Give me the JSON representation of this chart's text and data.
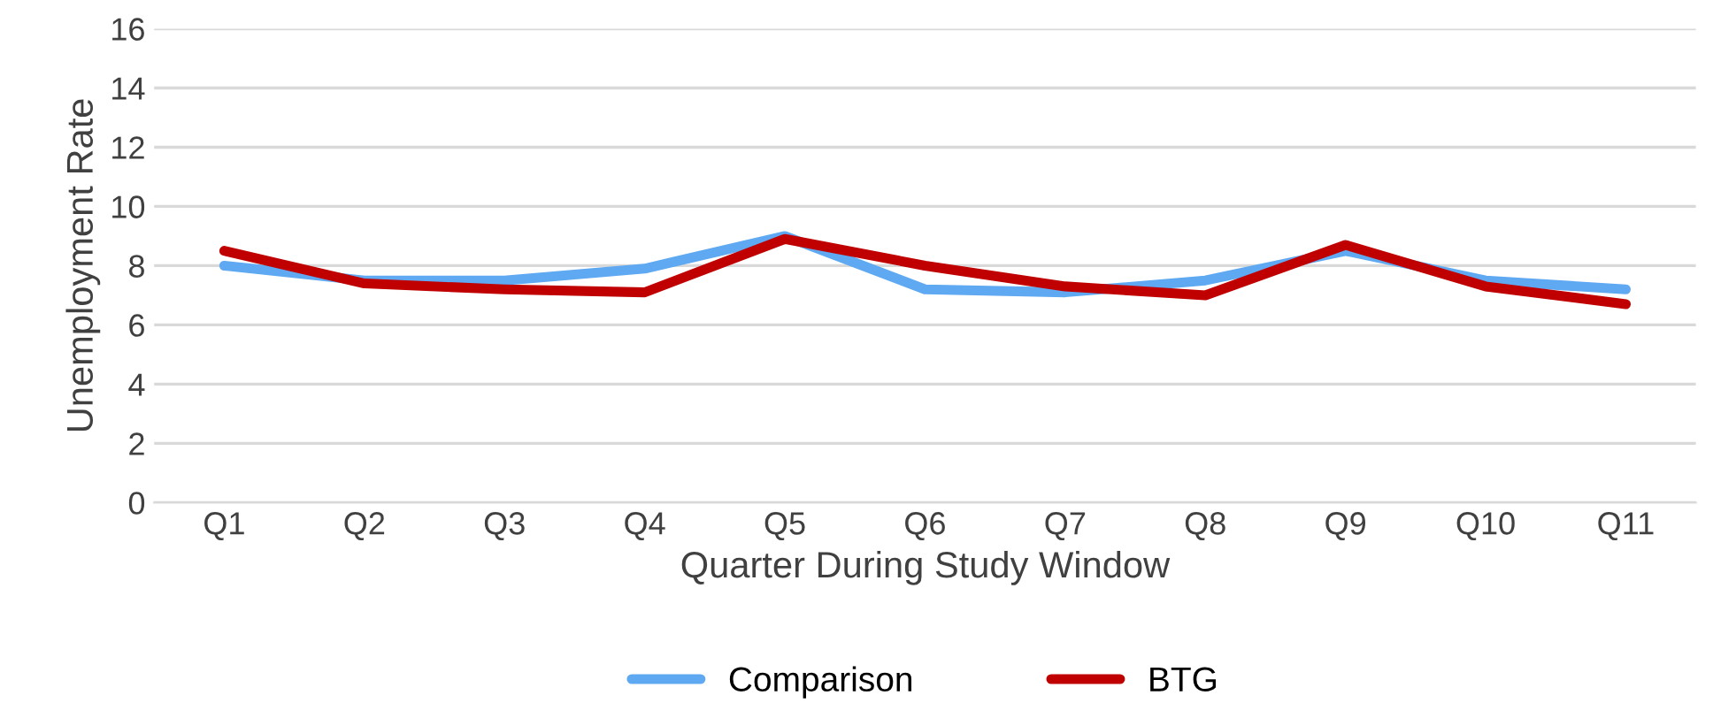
{
  "chart_data": {
    "type": "line",
    "xlabel": "Quarter During Study Window",
    "ylabel": "Unemployment Rate",
    "categories": [
      "Q1",
      "Q2",
      "Q3",
      "Q4",
      "Q5",
      "Q6",
      "Q7",
      "Q8",
      "Q9",
      "Q10",
      "Q11"
    ],
    "series": [
      {
        "name": "Comparison",
        "color": "#5ea9f2",
        "values": [
          8.0,
          7.5,
          7.5,
          7.9,
          9.0,
          7.2,
          7.1,
          7.5,
          8.5,
          7.5,
          7.2
        ]
      },
      {
        "name": "BTG",
        "color": "#c00000",
        "values": [
          8.5,
          7.4,
          7.2,
          7.1,
          8.9,
          8.0,
          7.3,
          7.0,
          8.7,
          7.3,
          6.7
        ]
      }
    ],
    "ylim": [
      0,
      16
    ],
    "yticks": [
      0,
      2,
      4,
      6,
      8,
      10,
      12,
      14,
      16
    ],
    "grid": "y",
    "legend": "bottom",
    "marker": "none",
    "line_style": "solid"
  }
}
